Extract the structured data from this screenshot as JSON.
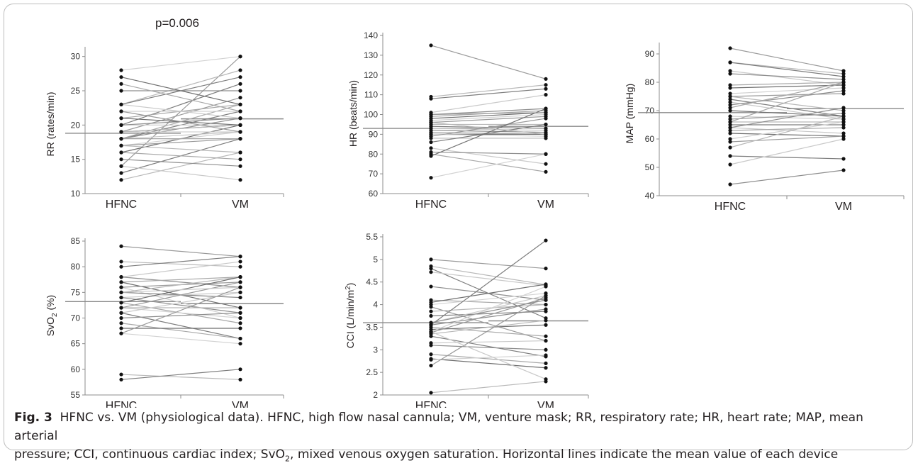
{
  "annotation": "p=0.006",
  "caption": {
    "label": "Fig. 3",
    "line1": "HFNC vs. VM (physiological data). HFNC, high flow nasal cannula; VM, venture mask; RR, respiratory rate; HR, heart rate; MAP, mean arterial",
    "line2_pre": "pressure; CCI, continuous cardiac index; SvO",
    "line2_sub": "2",
    "line2_post": ", mixed venous oxygen saturation. Horizontal lines indicate the mean value of each device"
  },
  "chart_data": [
    {
      "type": "line",
      "title": "",
      "annotation": "p=0.006",
      "categories": [
        "HFNC",
        "VM"
      ],
      "ylabel": "RR (rates/min)",
      "ylim": [
        10,
        31
      ],
      "yticks": [
        10,
        15,
        20,
        25,
        30
      ],
      "means": [
        18.8,
        20.9
      ],
      "pairs": [
        [
          14,
          30
        ],
        [
          12,
          16
        ],
        [
          13,
          18
        ],
        [
          14,
          12
        ],
        [
          15,
          14
        ],
        [
          16,
          15
        ],
        [
          16,
          20
        ],
        [
          17,
          19
        ],
        [
          17,
          18
        ],
        [
          17,
          16
        ],
        [
          18,
          22
        ],
        [
          18,
          19
        ],
        [
          18,
          21
        ],
        [
          18,
          23
        ],
        [
          19,
          20
        ],
        [
          19,
          19
        ],
        [
          19,
          24
        ],
        [
          19,
          20
        ],
        [
          20,
          26
        ],
        [
          20,
          20
        ],
        [
          20,
          21
        ],
        [
          21,
          23
        ],
        [
          21,
          20
        ],
        [
          22,
          22
        ],
        [
          22,
          19
        ],
        [
          23,
          28
        ],
        [
          23,
          27
        ],
        [
          23,
          21
        ],
        [
          25,
          25
        ],
        [
          26,
          22
        ],
        [
          27,
          23
        ],
        [
          28,
          30
        ],
        [
          18,
          18
        ]
      ]
    },
    {
      "type": "line",
      "title": "",
      "categories": [
        "HFNC",
        "VM"
      ],
      "ylabel": "HR (beats/min)",
      "ylim": [
        60,
        140
      ],
      "yticks": [
        60,
        70,
        80,
        90,
        100,
        110,
        120,
        130,
        140
      ],
      "means": [
        93,
        94
      ],
      "pairs": [
        [
          135,
          118
        ],
        [
          109,
          115
        ],
        [
          108,
          113
        ],
        [
          101,
          110
        ],
        [
          100,
          103
        ],
        [
          99,
          102
        ],
        [
          98,
          101
        ],
        [
          97,
          100
        ],
        [
          96,
          99
        ],
        [
          95,
          95
        ],
        [
          94,
          93
        ],
        [
          93,
          92
        ],
        [
          92,
          91
        ],
        [
          91,
          90
        ],
        [
          90,
          90
        ],
        [
          90,
          89
        ],
        [
          89,
          98
        ],
        [
          88,
          88
        ],
        [
          86,
          95
        ],
        [
          83,
          75
        ],
        [
          81,
          80
        ],
        [
          80,
          71
        ],
        [
          79,
          103
        ],
        [
          68,
          80
        ],
        [
          100,
          101
        ],
        [
          96,
          90
        ]
      ]
    },
    {
      "type": "line",
      "title": "",
      "categories": [
        "HFNC",
        "VM"
      ],
      "ylabel": "MAP (mmHg)",
      "ylim": [
        40,
        93
      ],
      "yticks": [
        40,
        50,
        60,
        70,
        80,
        90
      ],
      "means": [
        69.3,
        70.7
      ],
      "pairs": [
        [
          92,
          84
        ],
        [
          87,
          83
        ],
        [
          87,
          82
        ],
        [
          84,
          79
        ],
        [
          83,
          81
        ],
        [
          79,
          80
        ],
        [
          78,
          79
        ],
        [
          76,
          78
        ],
        [
          75,
          76
        ],
        [
          75,
          70
        ],
        [
          74,
          68
        ],
        [
          73,
          67
        ],
        [
          72,
          77
        ],
        [
          71,
          80
        ],
        [
          70,
          68
        ],
        [
          68,
          67
        ],
        [
          67,
          69
        ],
        [
          66,
          66
        ],
        [
          65,
          65
        ],
        [
          64,
          62
        ],
        [
          64,
          71
        ],
        [
          63,
          64
        ],
        [
          62,
          61
        ],
        [
          60,
          66
        ],
        [
          59,
          61
        ],
        [
          57,
          68
        ],
        [
          54,
          53
        ],
        [
          51,
          60
        ],
        [
          44,
          49
        ],
        [
          66,
          80
        ]
      ]
    },
    {
      "type": "line",
      "title": "",
      "categories": [
        "HFNC",
        "VM"
      ],
      "ylabel": "SvO2 (%)",
      "ylim": [
        55,
        85
      ],
      "yticks": [
        55,
        60,
        65,
        70,
        75,
        80,
        85
      ],
      "means": [
        73.2,
        72.8
      ],
      "pairs": [
        [
          84,
          82
        ],
        [
          81,
          80
        ],
        [
          80,
          82
        ],
        [
          78,
          81
        ],
        [
          78,
          76
        ],
        [
          77,
          78
        ],
        [
          77,
          72
        ],
        [
          76,
          70
        ],
        [
          76,
          77
        ],
        [
          75,
          78
        ],
        [
          75,
          74
        ],
        [
          74,
          75
        ],
        [
          74,
          71
        ],
        [
          73,
          69
        ],
        [
          73,
          78
        ],
        [
          72,
          70
        ],
        [
          72,
          77
        ],
        [
          72,
          72
        ],
        [
          71,
          66
        ],
        [
          71,
          75
        ],
        [
          70,
          71
        ],
        [
          69,
          66
        ],
        [
          68,
          68
        ],
        [
          67,
          65
        ],
        [
          67,
          76
        ],
        [
          59,
          58
        ],
        [
          58,
          60
        ],
        [
          75,
          76
        ]
      ]
    },
    {
      "type": "line",
      "title": "",
      "categories": [
        "HFNC",
        "VM"
      ],
      "ylabel": "CCI (L/min/m2)",
      "ylim": [
        2,
        5.5
      ],
      "yticks": [
        2,
        2.5,
        3,
        3.5,
        4,
        4.5,
        5,
        5.5
      ],
      "means": [
        3.6,
        3.64
      ],
      "pairs": [
        [
          5.0,
          4.8
        ],
        [
          4.85,
          4.44
        ],
        [
          4.8,
          3.7
        ],
        [
          4.72,
          4.42
        ],
        [
          4.4,
          4.1
        ],
        [
          4.1,
          4.0
        ],
        [
          4.05,
          4.45
        ],
        [
          4.0,
          4.25
        ],
        [
          3.95,
          3.2
        ],
        [
          3.85,
          4.0
        ],
        [
          3.75,
          3.85
        ],
        [
          3.6,
          4.2
        ],
        [
          3.55,
          3.9
        ],
        [
          3.5,
          3.3
        ],
        [
          3.45,
          3.55
        ],
        [
          3.4,
          4.4
        ],
        [
          3.38,
          4.15
        ],
        [
          3.35,
          3.65
        ],
        [
          3.3,
          2.85
        ],
        [
          3.15,
          3.2
        ],
        [
          3.1,
          3.0
        ],
        [
          2.9,
          2.7
        ],
        [
          2.8,
          2.6
        ],
        [
          2.78,
          2.88
        ],
        [
          2.65,
          4.2
        ],
        [
          2.05,
          2.3
        ],
        [
          3.55,
          5.42
        ],
        [
          3.4,
          2.35
        ],
        [
          3.6,
          4.1
        ]
      ]
    }
  ]
}
